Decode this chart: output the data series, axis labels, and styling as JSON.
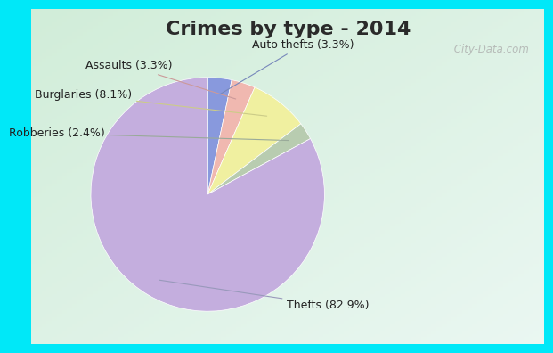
{
  "title": "Crimes by type - 2014",
  "labels": [
    "Thefts",
    "Burglaries",
    "Auto thefts",
    "Assaults",
    "Robberies"
  ],
  "values": [
    82.9,
    8.1,
    3.3,
    3.3,
    2.4
  ],
  "colors": [
    "#c4aede",
    "#f0f0a0",
    "#8899dd",
    "#f0b8b0",
    "#b8ccb0"
  ],
  "label_texts": [
    "Thefts (82.9%)",
    "Burglaries (8.1%)",
    "Auto thefts (3.3%)",
    "Assaults (3.3%)",
    "Robberies (2.4%)"
  ],
  "arrow_colors": [
    "#9999bb",
    "#cccc88",
    "#7788bb",
    "#cc9999",
    "#99aa99"
  ],
  "background_cyan": "#00e8f8",
  "border_width": 12,
  "title_fontsize": 16,
  "watermark": " City-Data.com",
  "label_fontsize": 9
}
